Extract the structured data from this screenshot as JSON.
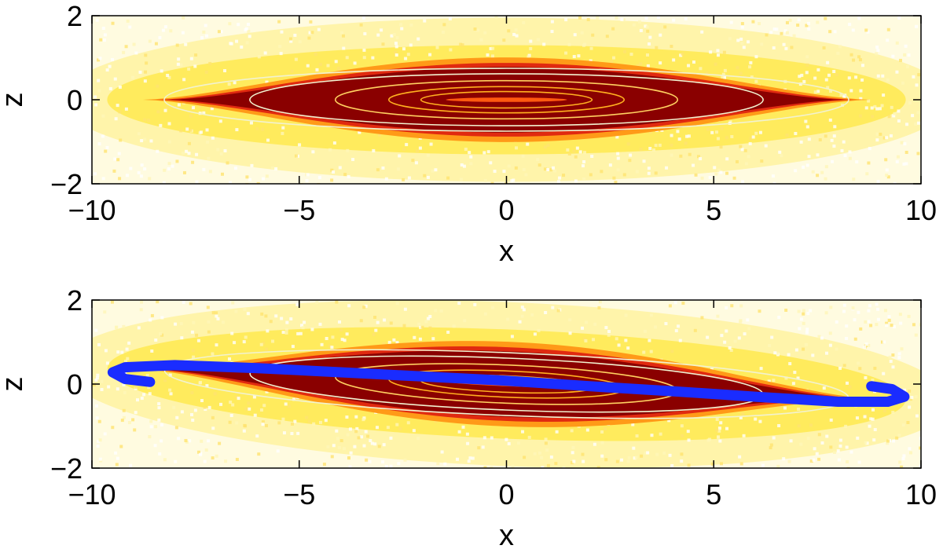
{
  "chart_data": [
    {
      "type": "heatmap",
      "title": "",
      "xlabel": "x",
      "ylabel": "z",
      "xlim": [
        -10,
        10
      ],
      "ylim": [
        -2,
        2
      ],
      "xticks": [
        -10,
        -5,
        0,
        5,
        10
      ],
      "yticks": [
        -2,
        0,
        2
      ],
      "xtick_labels": [
        "−10",
        "−5",
        "0",
        "5",
        "10"
      ],
      "ytick_labels": [
        "−2",
        "0",
        "2"
      ],
      "grid": false,
      "colormap": [
        "#ffffff",
        "#fff7b0",
        "#ffe21a",
        "#ff9a18",
        "#e02a10",
        "#8a0000"
      ],
      "contour_color": "#f2f2d0",
      "distribution": {
        "x_halfwidth": 8.6,
        "z_halfwidth": 0.65,
        "tilt_z_per_x": 0.0
      }
    },
    {
      "type": "heatmap",
      "title": "",
      "xlabel": "x",
      "ylabel": "z",
      "xlim": [
        -10,
        10
      ],
      "ylim": [
        -2,
        2
      ],
      "xticks": [
        -10,
        -5,
        0,
        5,
        10
      ],
      "yticks": [
        -2,
        0,
        2
      ],
      "xtick_labels": [
        "−10",
        "−5",
        "0",
        "5",
        "10"
      ],
      "ytick_labels": [
        "−2",
        "0",
        "2"
      ],
      "grid": false,
      "colormap": [
        "#ffffff",
        "#fff7b0",
        "#ffe21a",
        "#ff9a18",
        "#e02a10",
        "#8a0000"
      ],
      "contour_color": "#f2f2d0",
      "distribution": {
        "x_halfwidth": 8.6,
        "z_halfwidth": 0.65,
        "tilt_z_per_x": -0.04
      },
      "overlay": {
        "type": "line",
        "color": "#1a2cff",
        "x": [
          -8.6,
          -9.2,
          -9.5,
          -9.2,
          -8.0,
          -6.0,
          -4.0,
          -2.0,
          0.0,
          2.0,
          4.0,
          6.0,
          8.0,
          9.2,
          9.6,
          9.3,
          8.8
        ],
        "y": [
          0.05,
          0.12,
          0.28,
          0.4,
          0.45,
          0.38,
          0.28,
          0.18,
          0.08,
          -0.05,
          -0.17,
          -0.3,
          -0.42,
          -0.42,
          -0.3,
          -0.12,
          -0.05
        ]
      }
    }
  ]
}
